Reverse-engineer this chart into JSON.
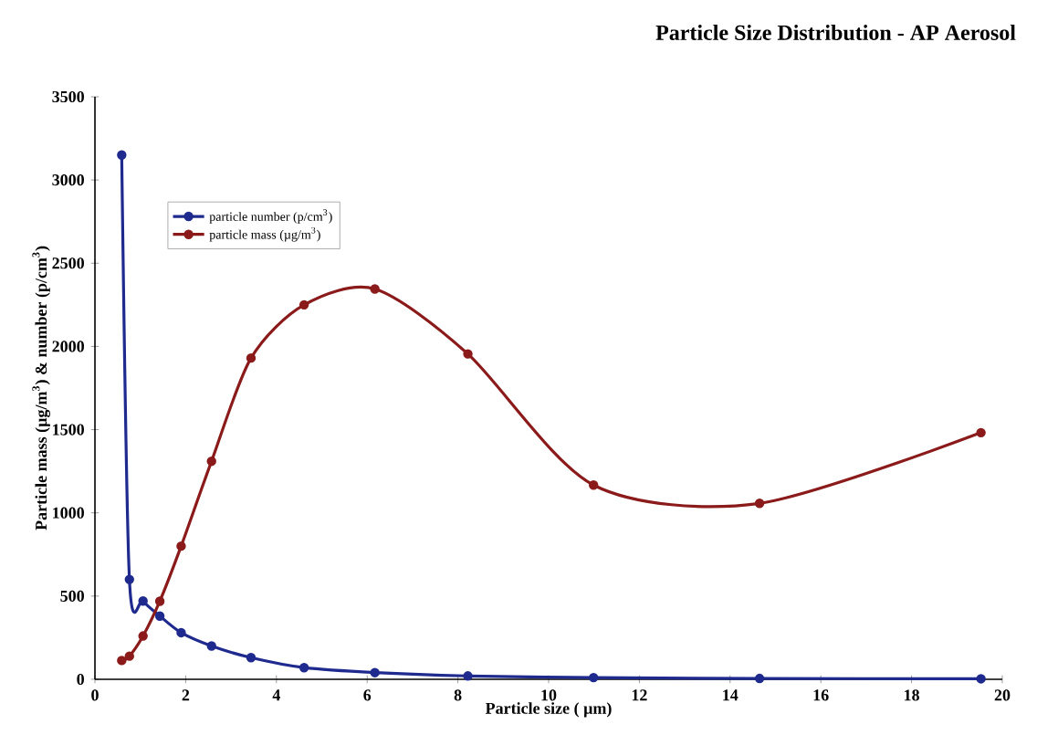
{
  "chart_data": {
    "type": "line",
    "title": "Particle Size Distribution - AP Aerosol",
    "xlabel": "Particle size ( µm)",
    "ylabel": "Particle mass (µg/m$^{3}$) & number (p/cm$^{3}$)",
    "xlim": [
      0,
      20
    ],
    "ylim": [
      0,
      3500
    ],
    "xticks": [
      0,
      2,
      4,
      6,
      8,
      10,
      12,
      14,
      16,
      18,
      20
    ],
    "yticks": [
      0,
      500,
      1000,
      1500,
      2000,
      2500,
      3000,
      3500
    ],
    "grid": false,
    "legend": "top left",
    "marker": "circle",
    "line_style": "solid",
    "x": [
      0.59,
      0.76,
      1.06,
      1.43,
      1.9,
      2.57,
      3.44,
      4.61,
      6.17,
      8.22,
      10.99,
      14.65,
      19.53
    ],
    "series": [
      {
        "name": "particle number (p/cm$^{3}$)",
        "color": "#1f2a8f",
        "values": [
          3150,
          600,
          470,
          380,
          280,
          200,
          130,
          70,
          40,
          20,
          10,
          5,
          3
        ]
      },
      {
        "name": "particle mass (µg/m$^{3}$)",
        "color": "#8b1a1a",
        "values": [
          113,
          139,
          260,
          469,
          800,
          1310,
          1930,
          2250,
          2345,
          1955,
          1167,
          1057,
          1482
        ]
      }
    ]
  }
}
